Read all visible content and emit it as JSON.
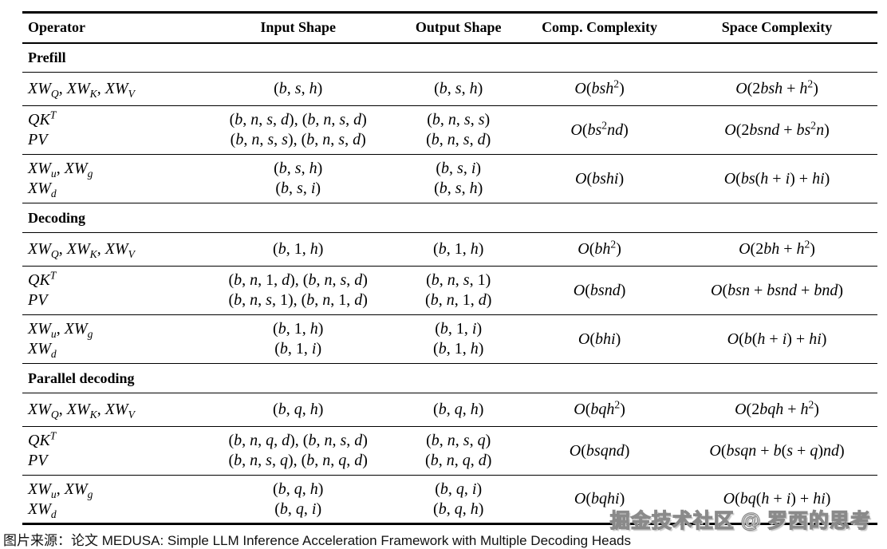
{
  "page": {
    "background_color": "#ffffff",
    "text_color": "#000000",
    "rule_color": "#000000"
  },
  "table": {
    "columns": [
      "Operator",
      "Input Shape",
      "Output Shape",
      "Comp. Complexity",
      "Space Complexity"
    ],
    "sections": [
      {
        "label": "Prefill",
        "rows": [
          {
            "op": [
              "XW_Q, XW_K, XW_V"
            ],
            "input": [
              "(b, s, h)"
            ],
            "output": [
              "(b, s, h)"
            ],
            "comp": "O(bsh^2)",
            "space": "O(2bsh + h^2)"
          },
          {
            "op": [
              "QK^T",
              "PV"
            ],
            "input": [
              "(b, n, s, d), (b, n, s, d)",
              "(b, n, s, s), (b, n, s, d)"
            ],
            "output": [
              "(b, n, s, s)",
              "(b, n, s, d)"
            ],
            "comp": "O(bs^2nd)",
            "space": "O(2bsnd + bs^2n)"
          },
          {
            "op": [
              "XW_u, XW_g",
              "XW_d"
            ],
            "input": [
              "(b, s, h)",
              "(b, s, i)"
            ],
            "output": [
              "(b, s, i)",
              "(b, s, h)"
            ],
            "comp": "O(bshi)",
            "space": "O(bs(h + i) + hi)"
          }
        ]
      },
      {
        "label": "Decoding",
        "rows": [
          {
            "op": [
              "XW_Q, XW_K, XW_V"
            ],
            "input": [
              "(b, 1, h)"
            ],
            "output": [
              "(b, 1, h)"
            ],
            "comp": "O(bh^2)",
            "space": "O(2bh + h^2)"
          },
          {
            "op": [
              "QK^T",
              "PV"
            ],
            "input": [
              "(b, n, 1, d), (b, n, s, d)",
              "(b, n, s, 1), (b, n, 1, d)"
            ],
            "output": [
              "(b, n, s, 1)",
              "(b, n, 1, d)"
            ],
            "comp": "O(bsnd)",
            "space": "O(bsn + bsnd + bnd)"
          },
          {
            "op": [
              "XW_u, XW_g",
              "XW_d"
            ],
            "input": [
              "(b, 1, h)",
              "(b, 1, i)"
            ],
            "output": [
              "(b, 1, i)",
              "(b, 1, h)"
            ],
            "comp": "O(bhi)",
            "space": "O(b(h + i) + hi)"
          }
        ]
      },
      {
        "label": "Parallel decoding",
        "rows": [
          {
            "op": [
              "XW_Q, XW_K, XW_V"
            ],
            "input": [
              "(b, q, h)"
            ],
            "output": [
              "(b, q, h)"
            ],
            "comp": "O(bqh^2)",
            "space": "O(2bqh + h^2)"
          },
          {
            "op": [
              "QK^T",
              "PV"
            ],
            "input": [
              "(b, n, q, d), (b, n, s, d)",
              "(b, n, s, q), (b, n, q, d)"
            ],
            "output": [
              "(b, n, s, q)",
              "(b, n, q, d)"
            ],
            "comp": "O(bsqnd)",
            "space": "O(bsqn + b(s + q)nd)"
          },
          {
            "op": [
              "XW_u, XW_g",
              "XW_d"
            ],
            "input": [
              "(b, q, h)",
              "(b, q, i)"
            ],
            "output": [
              "(b, q, i)",
              "(b, q, h)"
            ],
            "comp": "O(bqhi)",
            "space": "O(bq(h + i) + hi)"
          }
        ]
      }
    ]
  },
  "watermark": {
    "text": "掘金技术社区 @ 罗西的思考",
    "outline_color": "#8a8a8a"
  },
  "caption": "图片来源：论文 MEDUSA: Simple LLM Inference Acceleration Framework with Multiple Decoding Heads"
}
